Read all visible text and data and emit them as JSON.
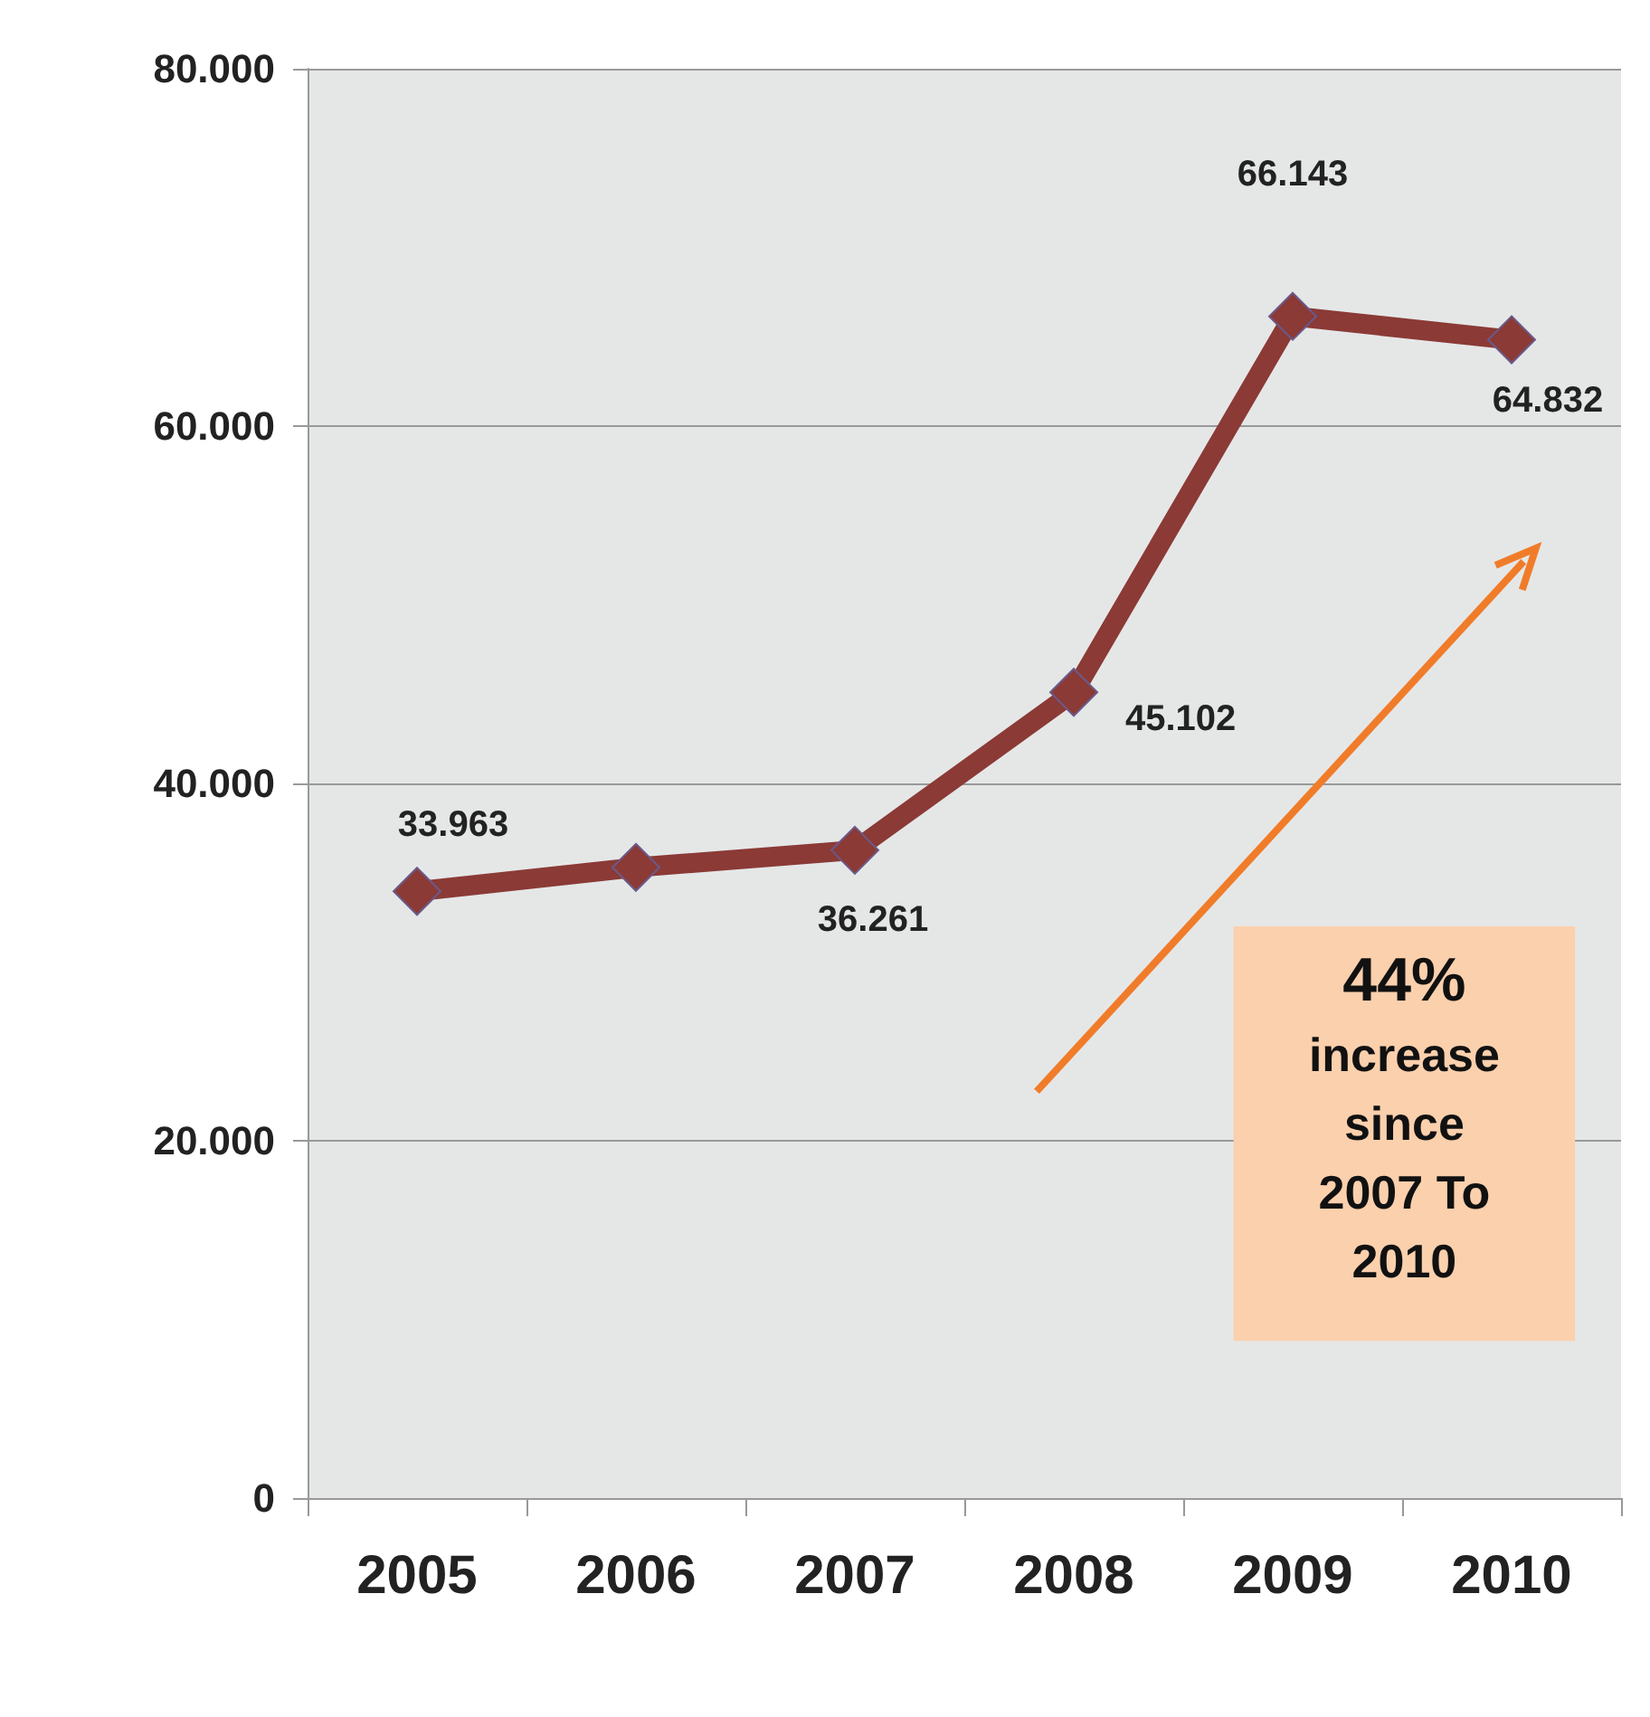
{
  "chart_data": {
    "type": "line",
    "categories": [
      "2005",
      "2006",
      "2007",
      "2008",
      "2009",
      "2010"
    ],
    "series": [
      {
        "color": "#8b3a36",
        "values": [
          33963,
          35300,
          36261,
          45102,
          66143,
          64832
        ],
        "value_labels": [
          "33.963",
          null,
          "36.261",
          "45.102",
          "66.143",
          "64.832"
        ]
      }
    ],
    "ylim": [
      0,
      80000
    ],
    "yticks": [
      0,
      {
        "value": 20000,
        "label": "20.000"
      },
      {
        "value": 40000,
        "label": "40.000"
      },
      {
        "value": 60000,
        "label": "60.000"
      },
      {
        "value": 80000,
        "label": "80.000"
      }
    ],
    "grid": "y",
    "marker": "diamond",
    "line_style": "solid",
    "annotations": [
      "44% increase since 2007 To 2010"
    ]
  }
}
